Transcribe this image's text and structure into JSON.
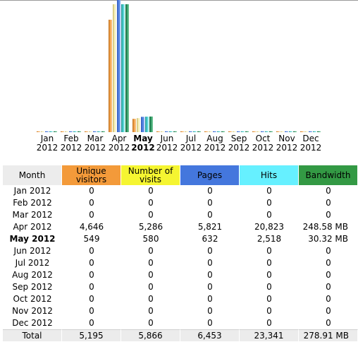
{
  "colors": {
    "unique_visitors": "#f39a3a",
    "visits": "#f5f531",
    "pages": "#4477dd",
    "hits": "#66f0ff",
    "bandwidth": "#339944"
  },
  "current_month": "May",
  "months": [
    {
      "short": "Jan",
      "year": "2012"
    },
    {
      "short": "Feb",
      "year": "2012"
    },
    {
      "short": "Mar",
      "year": "2012"
    },
    {
      "short": "Apr",
      "year": "2012"
    },
    {
      "short": "May",
      "year": "2012"
    },
    {
      "short": "Jun",
      "year": "2012"
    },
    {
      "short": "Jul",
      "year": "2012"
    },
    {
      "short": "Aug",
      "year": "2012"
    },
    {
      "short": "Sep",
      "year": "2012"
    },
    {
      "short": "Oct",
      "year": "2012"
    },
    {
      "short": "Nov",
      "year": "2012"
    },
    {
      "short": "Dec",
      "year": "2012"
    }
  ],
  "chart_data": {
    "type": "bar",
    "categories": [
      "Jan 2012",
      "Feb 2012",
      "Mar 2012",
      "Apr 2012",
      "May 2012",
      "Jun 2012",
      "Jul 2012",
      "Aug 2012",
      "Sep 2012",
      "Oct 2012",
      "Nov 2012",
      "Dec 2012"
    ],
    "series": [
      {
        "name": "Unique visitors",
        "values": [
          0,
          0,
          0,
          4646,
          549,
          0,
          0,
          0,
          0,
          0,
          0,
          0
        ]
      },
      {
        "name": "Number of visits",
        "values": [
          0,
          0,
          0,
          5286,
          580,
          0,
          0,
          0,
          0,
          0,
          0,
          0
        ]
      },
      {
        "name": "Pages",
        "values": [
          0,
          0,
          0,
          5821,
          632,
          0,
          0,
          0,
          0,
          0,
          0,
          0
        ]
      },
      {
        "name": "Hits",
        "values": [
          0,
          0,
          0,
          20823,
          2518,
          0,
          0,
          0,
          0,
          0,
          0,
          0
        ]
      },
      {
        "name": "Bandwidth (MB)",
        "values": [
          0,
          0,
          0,
          248.58,
          30.32,
          0,
          0,
          0,
          0,
          0,
          0,
          0
        ]
      }
    ]
  },
  "table": {
    "headers": {
      "month": "Month",
      "unique_visitors": [
        "Unique",
        "visitors"
      ],
      "visits": [
        "Number of",
        "visits"
      ],
      "pages": "Pages",
      "hits": "Hits",
      "bandwidth": "Bandwidth"
    },
    "rows": [
      {
        "month": "Jan 2012",
        "unique": "0",
        "visits": "0",
        "pages": "0",
        "hits": "0",
        "bandwidth": "0"
      },
      {
        "month": "Feb 2012",
        "unique": "0",
        "visits": "0",
        "pages": "0",
        "hits": "0",
        "bandwidth": "0"
      },
      {
        "month": "Mar 2012",
        "unique": "0",
        "visits": "0",
        "pages": "0",
        "hits": "0",
        "bandwidth": "0"
      },
      {
        "month": "Apr 2012",
        "unique": "4,646",
        "visits": "5,286",
        "pages": "5,821",
        "hits": "20,823",
        "bandwidth": "248.58 MB"
      },
      {
        "month": "May 2012",
        "unique": "549",
        "visits": "580",
        "pages": "632",
        "hits": "2,518",
        "bandwidth": "30.32 MB"
      },
      {
        "month": "Jun 2012",
        "unique": "0",
        "visits": "0",
        "pages": "0",
        "hits": "0",
        "bandwidth": "0"
      },
      {
        "month": "Jul 2012",
        "unique": "0",
        "visits": "0",
        "pages": "0",
        "hits": "0",
        "bandwidth": "0"
      },
      {
        "month": "Aug 2012",
        "unique": "0",
        "visits": "0",
        "pages": "0",
        "hits": "0",
        "bandwidth": "0"
      },
      {
        "month": "Sep 2012",
        "unique": "0",
        "visits": "0",
        "pages": "0",
        "hits": "0",
        "bandwidth": "0"
      },
      {
        "month": "Oct 2012",
        "unique": "0",
        "visits": "0",
        "pages": "0",
        "hits": "0",
        "bandwidth": "0"
      },
      {
        "month": "Nov 2012",
        "unique": "0",
        "visits": "0",
        "pages": "0",
        "hits": "0",
        "bandwidth": "0"
      },
      {
        "month": "Dec 2012",
        "unique": "0",
        "visits": "0",
        "pages": "0",
        "hits": "0",
        "bandwidth": "0"
      }
    ],
    "total": {
      "label": "Total",
      "unique": "5,195",
      "visits": "5,866",
      "pages": "6,453",
      "hits": "23,341",
      "bandwidth": "278.91 MB"
    }
  }
}
